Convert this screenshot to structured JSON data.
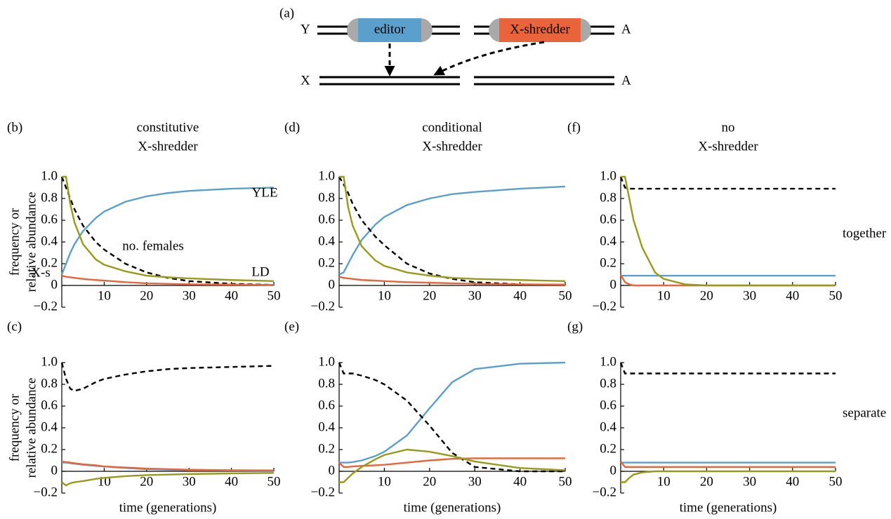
{
  "diagram": {
    "label": "(a)",
    "top_left": "Y",
    "editor": "editor",
    "x_shredder": "X-shredder",
    "top_right": "A",
    "bottom_left": "X",
    "bottom_right": "A"
  },
  "row_labels": [
    "together",
    "separate"
  ],
  "chart_data": [
    {
      "type": "line",
      "label": "(b)",
      "title": [
        "constitutive",
        "X-shredder"
      ],
      "ylabel": [
        "frequency or",
        "relative abundance"
      ],
      "x": [
        0,
        1,
        2,
        3,
        5,
        8,
        10,
        15,
        20,
        25,
        30,
        40,
        50
      ],
      "xlim": [
        0,
        50
      ],
      "ylim": [
        -0.2,
        1
      ],
      "xticks": [
        10,
        20,
        30,
        40,
        50
      ],
      "yticks": [
        {
          "value": -0.2,
          "label": "−0.2"
        },
        0,
        0.2,
        0.4,
        0.6,
        0.8,
        {
          "value": 1,
          "label": "1.0"
        }
      ],
      "series": [
        {
          "name": "YLE",
          "color": "#5b9fcc",
          "values": [
            0.1,
            0.2,
            0.3,
            0.38,
            0.5,
            0.62,
            0.68,
            0.77,
            0.82,
            0.85,
            0.87,
            0.89,
            0.9
          ]
        },
        {
          "name": "no. females",
          "color": "#000000",
          "dash": true,
          "values": [
            1,
            0.9,
            0.8,
            0.7,
            0.55,
            0.4,
            0.33,
            0.2,
            0.12,
            0.07,
            0.04,
            0.015,
            0.005
          ]
        },
        {
          "name": "X-s",
          "color": "#e9643a",
          "values": [
            0.09,
            0.08,
            0.075,
            0.07,
            0.06,
            0.05,
            0.045,
            0.03,
            0.02,
            0.015,
            0.01,
            0.008,
            0.005
          ]
        },
        {
          "name": "LD",
          "color": "#9a9a1a",
          "values": [
            1,
            1,
            0.75,
            0.58,
            0.38,
            0.24,
            0.19,
            0.13,
            0.09,
            0.075,
            0.065,
            0.05,
            0.04
          ]
        }
      ]
    },
    {
      "type": "line",
      "label": "(d)",
      "title": [
        "conditional",
        "X-shredder"
      ],
      "x": [
        0,
        1,
        2,
        3,
        5,
        8,
        10,
        15,
        20,
        25,
        30,
        40,
        50
      ],
      "xlim": [
        0,
        50
      ],
      "ylim": [
        -0.2,
        1
      ],
      "xticks": [
        10,
        20,
        30,
        40,
        50
      ],
      "yticks": [
        {
          "value": -0.2,
          "label": "−0.2"
        },
        0,
        0.2,
        0.4,
        0.6,
        0.8,
        {
          "value": 1,
          "label": "1.0"
        }
      ],
      "series": [
        {
          "color": "#5b9fcc",
          "values": [
            0.1,
            0.12,
            0.2,
            0.28,
            0.42,
            0.56,
            0.63,
            0.74,
            0.8,
            0.84,
            0.86,
            0.89,
            0.91
          ]
        },
        {
          "color": "#000000",
          "dash": true,
          "values": [
            1,
            0.93,
            0.85,
            0.75,
            0.6,
            0.45,
            0.37,
            0.2,
            0.11,
            0.06,
            0.03,
            0.01,
            0.005
          ]
        },
        {
          "color": "#e9643a",
          "values": [
            0.08,
            0.07,
            0.065,
            0.06,
            0.05,
            0.045,
            0.04,
            0.03,
            0.025,
            0.02,
            0.015,
            0.01,
            0.008
          ]
        },
        {
          "color": "#9a9a1a",
          "values": [
            1,
            1,
            0.72,
            0.55,
            0.36,
            0.23,
            0.18,
            0.12,
            0.09,
            0.07,
            0.06,
            0.05,
            0.04
          ]
        }
      ]
    },
    {
      "type": "line",
      "label": "(f)",
      "title": [
        "no",
        "X-shredder"
      ],
      "x": [
        0,
        1,
        2,
        3,
        5,
        8,
        10,
        15,
        20,
        25,
        30,
        40,
        50
      ],
      "xlim": [
        0,
        50
      ],
      "ylim": [
        -0.2,
        1
      ],
      "xticks": [
        10,
        20,
        30,
        40,
        50
      ],
      "yticks": [
        {
          "value": -0.2,
          "label": "−0.2"
        },
        0,
        0.2,
        0.4,
        0.6,
        0.8,
        {
          "value": 1,
          "label": "1.0"
        }
      ],
      "series": [
        {
          "color": "#5b9fcc",
          "values": [
            0.09,
            0.09,
            0.09,
            0.09,
            0.09,
            0.09,
            0.09,
            0.09,
            0.09,
            0.09,
            0.09,
            0.09,
            0.09
          ]
        },
        {
          "color": "#000000",
          "dash": true,
          "values": [
            1,
            0.9,
            0.89,
            0.89,
            0.89,
            0.89,
            0.89,
            0.89,
            0.89,
            0.89,
            0.89,
            0.89,
            0.89
          ]
        },
        {
          "color": "#e9643a",
          "values": [
            0.1,
            0.03,
            0.01,
            0,
            0,
            0,
            0,
            0,
            0,
            0,
            0,
            0,
            0
          ]
        },
        {
          "color": "#9a9a1a",
          "values": [
            1,
            1,
            0.8,
            0.6,
            0.35,
            0.12,
            0.06,
            0.01,
            0,
            0,
            0,
            0,
            0
          ]
        }
      ]
    },
    {
      "type": "line",
      "label": "(c)",
      "ylabel": [
        "frequency or",
        "relative abundance"
      ],
      "xlabel": "time (generations)",
      "x": [
        0,
        1,
        2,
        3,
        5,
        8,
        10,
        15,
        20,
        25,
        30,
        40,
        50
      ],
      "xlim": [
        0,
        50
      ],
      "ylim": [
        -0.2,
        1
      ],
      "xticks": [
        10,
        20,
        30,
        40,
        50
      ],
      "yticks": [
        {
          "value": -0.2,
          "label": "−0.2"
        },
        0,
        0.2,
        0.4,
        0.6,
        0.8,
        {
          "value": 1,
          "label": "1.0"
        }
      ],
      "series": [
        {
          "color": "#5b9fcc",
          "values": [
            0.08,
            0.08,
            0.075,
            0.07,
            0.06,
            0.05,
            0.045,
            0.03,
            0.02,
            0.015,
            0.01,
            0.008,
            0.005
          ]
        },
        {
          "color": "#000000",
          "dash": true,
          "values": [
            1,
            0.85,
            0.76,
            0.74,
            0.76,
            0.82,
            0.85,
            0.89,
            0.92,
            0.94,
            0.95,
            0.96,
            0.97
          ]
        },
        {
          "color": "#e9643a",
          "values": [
            0.09,
            0.085,
            0.08,
            0.075,
            0.065,
            0.055,
            0.045,
            0.035,
            0.025,
            0.02,
            0.015,
            0.01,
            0.008
          ]
        },
        {
          "color": "#9a9a1a",
          "values": [
            -0.1,
            -0.13,
            -0.11,
            -0.1,
            -0.09,
            -0.07,
            -0.06,
            -0.045,
            -0.035,
            -0.03,
            -0.025,
            -0.02,
            -0.015
          ]
        }
      ]
    },
    {
      "type": "line",
      "label": "(e)",
      "xlabel": "time (generations)",
      "x": [
        0,
        1,
        2,
        3,
        5,
        8,
        10,
        15,
        20,
        25,
        30,
        40,
        50
      ],
      "xlim": [
        0,
        50
      ],
      "ylim": [
        -0.2,
        1
      ],
      "xticks": [
        10,
        20,
        30,
        40,
        50
      ],
      "yticks": [
        {
          "value": -0.2,
          "label": "−0.2"
        },
        0,
        0.2,
        0.4,
        0.6,
        0.8,
        {
          "value": 1,
          "label": "1.0"
        }
      ],
      "series": [
        {
          "color": "#5b9fcc",
          "values": [
            0.08,
            0.08,
            0.08,
            0.085,
            0.1,
            0.14,
            0.18,
            0.33,
            0.58,
            0.82,
            0.94,
            0.99,
            1
          ]
        },
        {
          "color": "#000000",
          "dash": true,
          "values": [
            1,
            0.9,
            0.9,
            0.9,
            0.88,
            0.84,
            0.8,
            0.65,
            0.42,
            0.17,
            0.04,
            0,
            0
          ]
        },
        {
          "color": "#e9643a",
          "values": [
            0.08,
            0.04,
            0.04,
            0.045,
            0.05,
            0.055,
            0.06,
            0.08,
            0.1,
            0.115,
            0.12,
            0.12,
            0.12
          ]
        },
        {
          "color": "#9a9a1a",
          "values": [
            -0.1,
            -0.1,
            -0.06,
            -0.02,
            0.04,
            0.11,
            0.15,
            0.2,
            0.18,
            0.14,
            0.09,
            0.03,
            0.01
          ]
        }
      ]
    },
    {
      "type": "line",
      "label": "(g)",
      "xlabel": "time (generations)",
      "x": [
        0,
        1,
        2,
        3,
        5,
        8,
        10,
        15,
        20,
        25,
        30,
        40,
        50
      ],
      "xlim": [
        0,
        50
      ],
      "ylim": [
        -0.2,
        1
      ],
      "xticks": [
        10,
        20,
        30,
        40,
        50
      ],
      "yticks": [
        {
          "value": -0.2,
          "label": "−0.2"
        },
        0,
        0.2,
        0.4,
        0.6,
        0.8,
        {
          "value": 1,
          "label": "1.0"
        }
      ],
      "series": [
        {
          "color": "#5b9fcc",
          "values": [
            0.08,
            0.08,
            0.08,
            0.08,
            0.08,
            0.08,
            0.08,
            0.08,
            0.08,
            0.08,
            0.08,
            0.08,
            0.08
          ]
        },
        {
          "color": "#000000",
          "dash": true,
          "values": [
            1,
            0.9,
            0.9,
            0.9,
            0.9,
            0.9,
            0.9,
            0.9,
            0.9,
            0.9,
            0.9,
            0.9,
            0.9
          ]
        },
        {
          "color": "#e9643a",
          "values": [
            0.09,
            0.04,
            0.04,
            0.04,
            0.04,
            0.04,
            0.04,
            0.04,
            0.04,
            0.04,
            0.04,
            0.04,
            0.04
          ]
        },
        {
          "color": "#9a9a1a",
          "values": [
            -0.1,
            -0.1,
            -0.06,
            -0.03,
            -0.01,
            0,
            0,
            0,
            0,
            0,
            0,
            0,
            0
          ]
        }
      ]
    }
  ]
}
